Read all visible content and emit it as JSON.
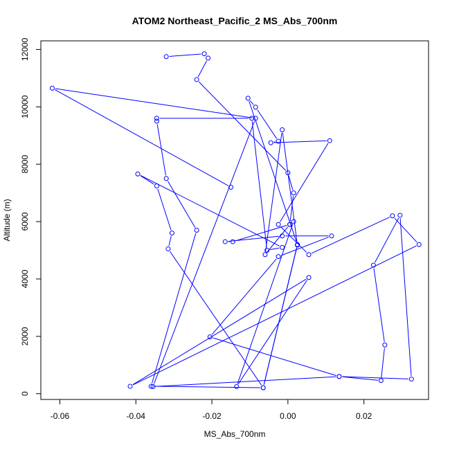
{
  "chart_data": {
    "type": "line",
    "title": "ATOM2 Northeast_Pacific_2 MS_Abs_700nm",
    "xlabel": "MS_Abs_700nm",
    "ylabel": "Altitude (m)",
    "xlim": [
      -0.065,
      0.037
    ],
    "ylim": [
      -200,
      12300
    ],
    "xticks": [
      -0.06,
      -0.04,
      -0.02,
      0.0,
      0.02
    ],
    "xtick_labels": [
      "-0.06",
      "-0.04",
      "-0.02",
      "0.00",
      "0.02"
    ],
    "yticks": [
      0,
      2000,
      4000,
      6000,
      8000,
      10000,
      12000
    ],
    "ytick_labels": [
      "0",
      "2000",
      "4000",
      "6000",
      "8000",
      "10000",
      "12000"
    ],
    "grid": false,
    "legend": "none",
    "color": "#0000ff",
    "series": [
      {
        "x": [
          -0.032,
          -0.022,
          -0.021,
          -0.024,
          -0.0,
          0.0015,
          0.0005,
          -0.006,
          -0.0015,
          0.0025,
          -0.0065,
          -0.036,
          -0.024,
          -0.032,
          -0.0345,
          -0.0345,
          -0.0095,
          -0.0055,
          -0.0015,
          -0.0395,
          -0.0345,
          -0.0305,
          -0.0315,
          -0.0065,
          0.0025,
          -0.0105,
          -0.0085,
          -0.0025,
          -0.0045,
          0.011,
          -0.0025,
          0.0055,
          0.0275,
          0.0345,
          -0.0415,
          0.0055,
          -0.0135,
          0.0015,
          0.0005,
          -0.0145,
          -0.0165,
          -0.0015,
          0.0115,
          -0.0025,
          -0.0205,
          0.0135,
          0.0245,
          0.0255,
          0.0225,
          0.0295,
          0.0325,
          0.0135,
          -0.0355,
          -0.0085,
          -0.062,
          -0.015
        ],
        "y": [
          11750,
          11850,
          11700,
          10950,
          7700,
          7000,
          5900,
          4850,
          9200,
          5180,
          210,
          260,
          5700,
          7500,
          9500,
          9600,
          9600,
          5000,
          5100,
          7660,
          7240,
          5600,
          5050,
          210,
          5200,
          10300,
          9990,
          8800,
          8750,
          8820,
          5900,
          4850,
          6200,
          5200,
          260,
          4050,
          250,
          6000,
          5900,
          5300,
          5300,
          5500,
          5500,
          4780,
          1980,
          600,
          460,
          1700,
          4480,
          6220,
          510,
          600,
          250,
          9600,
          10650,
          7200
        ]
      }
    ]
  }
}
